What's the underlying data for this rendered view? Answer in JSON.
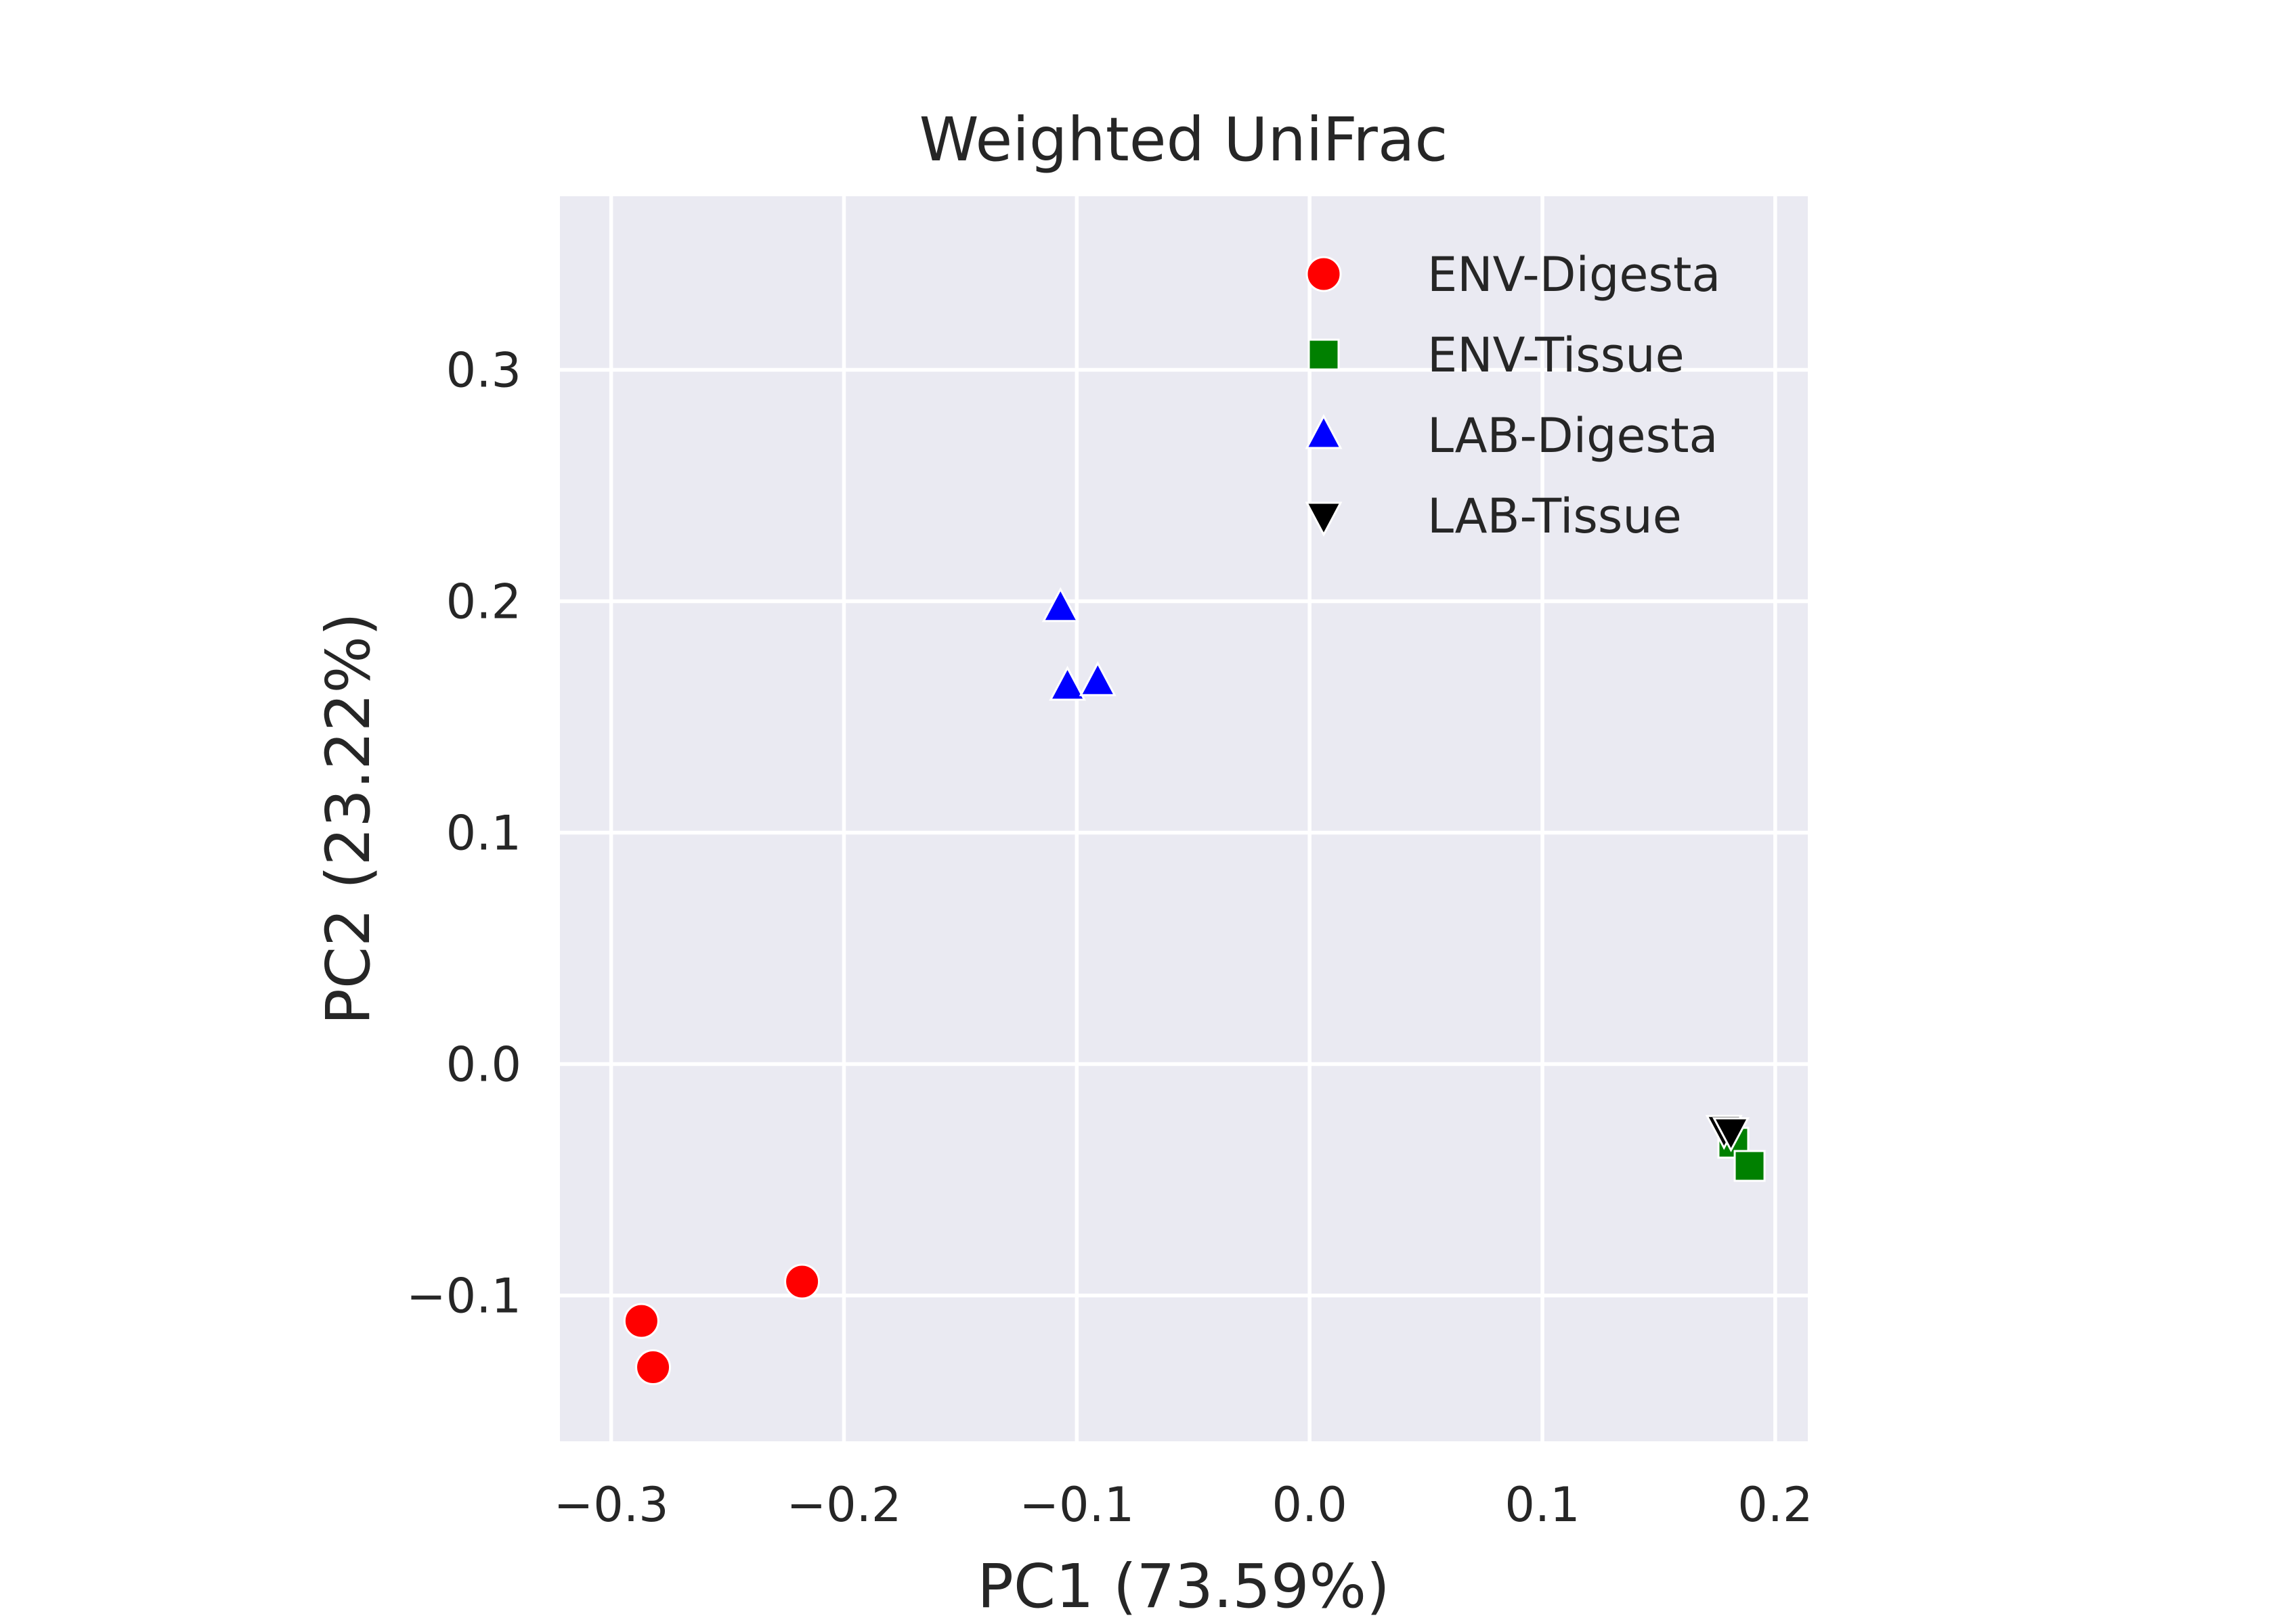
{
  "chart_data": {
    "type": "scatter",
    "title": "Weighted UniFrac",
    "xlabel": "PC1 (73.59%)",
    "ylabel": "PC2 (23.22%)",
    "xlim": [
      -0.322,
      0.214
    ],
    "ylim": [
      -0.163,
      0.375
    ],
    "xticks": [
      {
        "value": -0.3,
        "label": "−0.3"
      },
      {
        "value": -0.2,
        "label": "−0.2"
      },
      {
        "value": -0.1,
        "label": "−0.1"
      },
      {
        "value": 0.0,
        "label": "0.0"
      },
      {
        "value": 0.1,
        "label": "0.1"
      },
      {
        "value": 0.2,
        "label": "0.2"
      }
    ],
    "yticks": [
      {
        "value": -0.1,
        "label": "−0.1"
      },
      {
        "value": 0.0,
        "label": "0.0"
      },
      {
        "value": 0.1,
        "label": "0.1"
      },
      {
        "value": 0.2,
        "label": "0.2"
      },
      {
        "value": 0.3,
        "label": "0.3"
      }
    ],
    "grid": true,
    "background": "#eaeaf2",
    "grid_color": "#ffffff",
    "legend_position": "top-right",
    "series": [
      {
        "name": "ENV-Digesta",
        "marker": "circle",
        "color": "#ff0000",
        "points": [
          {
            "x": -0.218,
            "y": -0.094
          },
          {
            "x": -0.287,
            "y": -0.111
          },
          {
            "x": -0.282,
            "y": -0.131
          }
        ]
      },
      {
        "name": "ENV-Tissue",
        "marker": "square",
        "color": "#008000",
        "points": [
          {
            "x": 0.182,
            "y": -0.034
          },
          {
            "x": 0.189,
            "y": -0.044
          }
        ]
      },
      {
        "name": "LAB-Digesta",
        "marker": "triangle-up",
        "color": "#0000ff",
        "points": [
          {
            "x": -0.107,
            "y": 0.197
          },
          {
            "x": -0.104,
            "y": 0.163
          },
          {
            "x": -0.091,
            "y": 0.165
          }
        ]
      },
      {
        "name": "LAB-Tissue",
        "marker": "triangle-down",
        "color": "#000000",
        "points": [
          {
            "x": 0.178,
            "y": -0.028
          },
          {
            "x": 0.181,
            "y": -0.029
          }
        ]
      }
    ]
  }
}
